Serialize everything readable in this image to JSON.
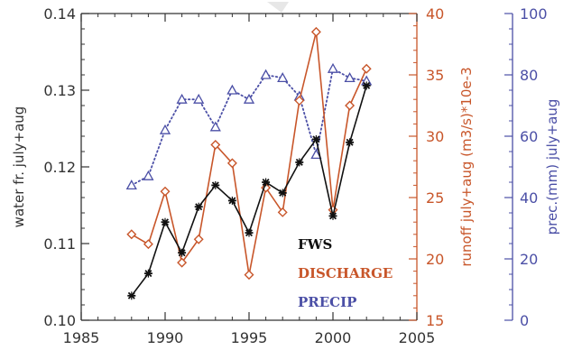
{
  "chart_data": {
    "type": "line",
    "x": [
      1988,
      1989,
      1990,
      1991,
      1992,
      1993,
      1994,
      1995,
      1996,
      1997,
      1998,
      1999,
      2000,
      2001,
      2002
    ],
    "xlim": [
      1985,
      2005
    ],
    "xticks": [
      1985,
      1990,
      1995,
      2000,
      2005
    ],
    "xlabel": "",
    "axes": {
      "left": {
        "label": "water fr. july+aug",
        "ylim": [
          0.1,
          0.14
        ],
        "ticks": [
          "0.10",
          "0.11",
          "0.12",
          "0.13",
          "0.14"
        ],
        "color": "#333333"
      },
      "right1": {
        "label": "runoff july+aug (m3/s)*10e-3",
        "ylim": [
          15,
          40
        ],
        "ticks": [
          "15",
          "20",
          "25",
          "30",
          "35",
          "40"
        ],
        "color": "#c8562a"
      },
      "right2": {
        "label": "prec.(mm) july+aug",
        "ylim": [
          0,
          100
        ],
        "ticks": [
          "0",
          "20",
          "40",
          "60",
          "80",
          "100"
        ],
        "color": "#4b4fa6"
      }
    },
    "series": [
      {
        "name": "FWS",
        "axis": "left",
        "color": "#111111",
        "marker": "star",
        "line": "solid",
        "values": [
          0.1032,
          0.1061,
          0.1128,
          0.1088,
          0.1148,
          0.1176,
          0.1156,
          0.1114,
          0.118,
          0.1166,
          0.1206,
          0.1236,
          0.1136,
          0.1232,
          0.1306
        ]
      },
      {
        "name": "DISCHARGE",
        "axis": "right1",
        "color": "#c8562a",
        "marker": "diamond",
        "line": "solid",
        "values": [
          22.0,
          21.2,
          25.5,
          19.7,
          21.6,
          29.3,
          27.8,
          18.7,
          25.8,
          23.8,
          32.9,
          38.5,
          24.0,
          32.5,
          35.5
        ]
      },
      {
        "name": "PRECIP",
        "axis": "right2",
        "color": "#4b4fa6",
        "marker": "triangle",
        "line": "dotted",
        "values": [
          44,
          47,
          62,
          72,
          72,
          63,
          75,
          72,
          80,
          79,
          73,
          54,
          82,
          79,
          78
        ]
      }
    ],
    "legend": [
      "FWS",
      "DISCHARGE",
      "PRECIP"
    ],
    "legend_placement": "bottom-right",
    "grid": false
  }
}
